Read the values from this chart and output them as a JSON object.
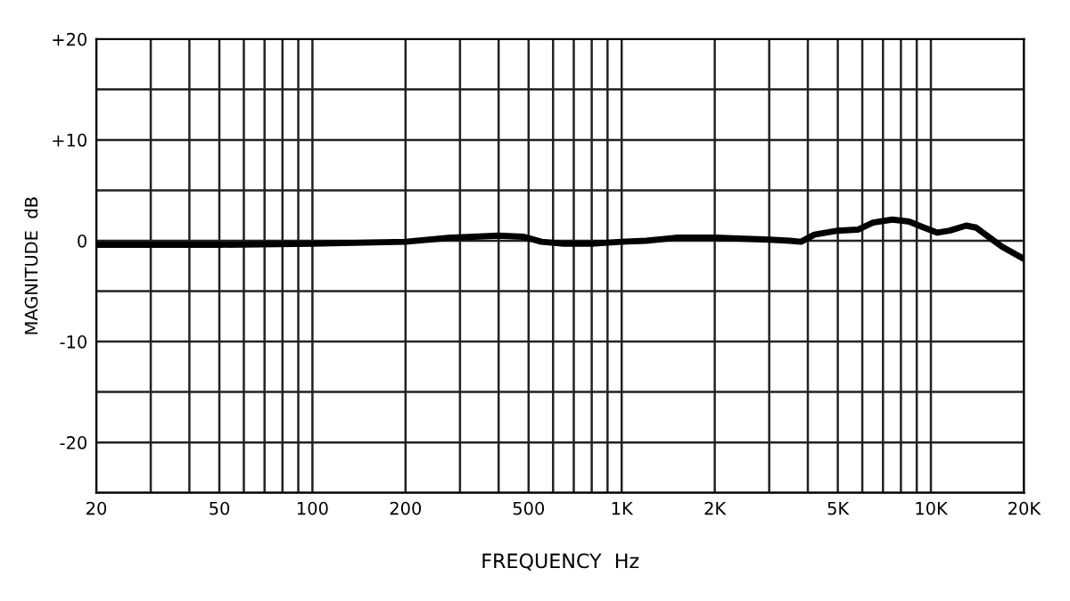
{
  "chart_data": {
    "type": "line",
    "xlabel": "FREQUENCY  Hz",
    "ylabel": "MAGNITUDE  dB",
    "log": "x",
    "grid": true,
    "marker": "none",
    "line_style": "solid",
    "xlim": [
      20,
      20000
    ],
    "ylim": [
      -25,
      20
    ],
    "xticks": [
      20,
      {
        "value": 30,
        "label": null
      },
      {
        "value": 40,
        "label": null
      },
      50,
      {
        "value": 60,
        "label": null
      },
      {
        "value": 70,
        "label": null
      },
      {
        "value": 80,
        "label": null
      },
      {
        "value": 90,
        "label": null
      },
      100,
      200,
      {
        "value": 300,
        "label": null
      },
      {
        "value": 400,
        "label": null
      },
      500,
      {
        "value": 600,
        "label": null
      },
      {
        "value": 700,
        "label": null
      },
      {
        "value": 800,
        "label": null
      },
      {
        "value": 900,
        "label": null
      },
      {
        "value": 1000,
        "label": "1K"
      },
      {
        "value": 2000,
        "label": "2K"
      },
      {
        "value": 3000,
        "label": null
      },
      {
        "value": 4000,
        "label": null
      },
      {
        "value": 5000,
        "label": "5K"
      },
      {
        "value": 6000,
        "label": null
      },
      {
        "value": 7000,
        "label": null
      },
      {
        "value": 8000,
        "label": null
      },
      {
        "value": 9000,
        "label": null
      },
      {
        "value": 10000,
        "label": "10K"
      },
      {
        "value": 20000,
        "label": "20K"
      }
    ],
    "yticks": [
      {
        "value": 20,
        "label": "+20"
      },
      {
        "value": 15,
        "label": null
      },
      {
        "value": 10,
        "label": "+10"
      },
      {
        "value": 5,
        "label": null
      },
      0,
      {
        "value": -5,
        "label": null
      },
      {
        "value": -10,
        "label": "-10"
      },
      {
        "value": -15,
        "label": null
      },
      {
        "value": -20,
        "label": "-20"
      },
      {
        "value": -25,
        "label": null
      }
    ],
    "series": [
      {
        "color": "#000000",
        "x": [
          20,
          50,
          100,
          200,
          280,
          400,
          480,
          550,
          650,
          800,
          1000,
          1200,
          1500,
          2000,
          2500,
          3000,
          3500,
          3800,
          4200,
          5000,
          5800,
          6500,
          7500,
          8500,
          9500,
          10500,
          11500,
          13000,
          14000,
          15500,
          17000,
          20000
        ],
        "values": [
          -0.4,
          -0.4,
          -0.3,
          -0.1,
          0.3,
          0.5,
          0.4,
          -0.1,
          -0.3,
          -0.3,
          -0.1,
          0.0,
          0.3,
          0.3,
          0.2,
          0.1,
          0.0,
          -0.1,
          0.6,
          1.0,
          1.1,
          1.8,
          2.1,
          1.9,
          1.3,
          0.8,
          1.0,
          1.5,
          1.3,
          0.3,
          -0.6,
          -1.8
        ]
      }
    ]
  }
}
